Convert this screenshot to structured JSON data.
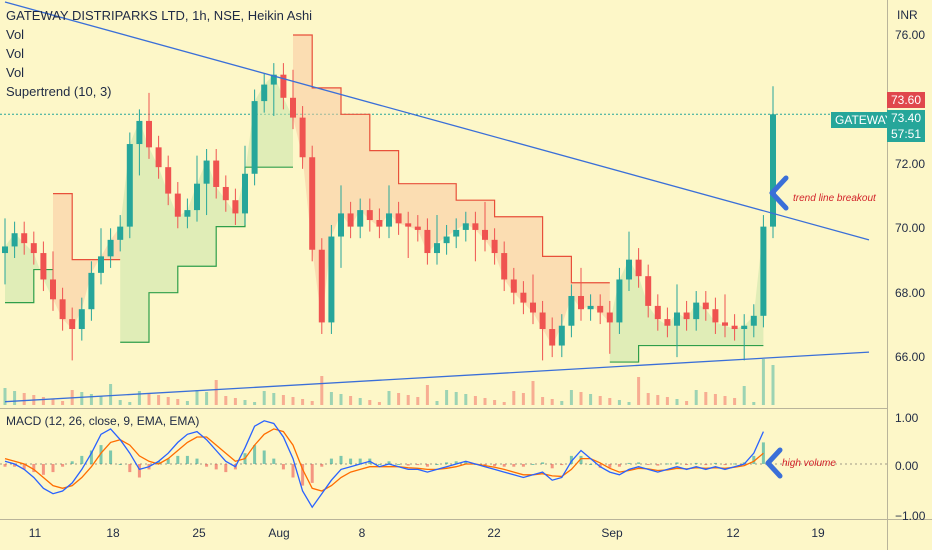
{
  "chart_data": [
    {
      "type": "candlestick",
      "title": "GATEWAY DISTRIPARKS LTD, 1h, NSE, Heikin Ashi",
      "indicators": [
        "Vol",
        "Vol",
        "Vol",
        "Supertrend (10, 3)"
      ],
      "currency": "INR",
      "ylim": [
        64.6,
        76.8
      ],
      "y_ticks": [
        "76.00",
        "72.00",
        "70.00",
        "68.00",
        "66.00"
      ],
      "x_ticks": [
        "11",
        "18",
        "25",
        "Aug",
        "8",
        "22",
        "Sep",
        "12",
        "19"
      ],
      "price_series": [
        69.4,
        69.8,
        69.5,
        69.2,
        68.4,
        67.8,
        67.2,
        66.9,
        67.5,
        68.6,
        69.1,
        69.6,
        70.0,
        72.5,
        73.2,
        72.4,
        71.8,
        71.0,
        70.3,
        70.5,
        71.3,
        72.0,
        71.2,
        70.8,
        70.4,
        71.6,
        73.8,
        74.3,
        74.6,
        73.9,
        73.3,
        72.1,
        69.3,
        67.1,
        69.7,
        70.4,
        70.0,
        70.5,
        70.2,
        70.0,
        70.4,
        70.1,
        70.0,
        69.9,
        69.2,
        69.5,
        69.7,
        69.9,
        70.1,
        69.9,
        69.6,
        69.2,
        68.4,
        68.0,
        67.7,
        67.4,
        66.9,
        66.4,
        67.0,
        67.9,
        67.5,
        67.6,
        67.4,
        67.1,
        68.4,
        69.0,
        68.5,
        67.6,
        67.2,
        67.0,
        67.4,
        67.2,
        67.7,
        67.5,
        67.1,
        67.0,
        66.9,
        67.0,
        67.3,
        70.0,
        73.4
      ],
      "supertrend_segments": [
        {
          "state": "up",
          "points": [
            [
              0,
              67.7
            ],
            [
              3,
              67.7
            ],
            [
              3,
              68.7
            ],
            [
              5,
              68.7
            ]
          ]
        },
        {
          "state": "down",
          "points": [
            [
              5,
              71.0
            ],
            [
              7,
              71.0
            ],
            [
              7,
              69.0
            ],
            [
              12,
              69.0
            ]
          ]
        },
        {
          "state": "up",
          "points": [
            [
              12,
              66.5
            ],
            [
              15,
              66.5
            ],
            [
              15,
              68.0
            ],
            [
              18,
              68.0
            ],
            [
              18,
              68.8
            ],
            [
              22,
              68.8
            ],
            [
              22,
              70.0
            ],
            [
              25,
              70.0
            ],
            [
              25,
              71.8
            ],
            [
              30,
              71.8
            ]
          ]
        },
        {
          "state": "down",
          "points": [
            [
              30,
              75.8
            ],
            [
              32,
              75.8
            ],
            [
              32,
              74.2
            ],
            [
              35,
              74.2
            ],
            [
              35,
              73.4
            ],
            [
              38,
              73.4
            ],
            [
              38,
              72.3
            ],
            [
              41,
              72.3
            ],
            [
              41,
              71.3
            ],
            [
              47,
              71.3
            ],
            [
              47,
              70.8
            ],
            [
              51,
              70.8
            ],
            [
              51,
              70.3
            ],
            [
              56,
              70.3
            ],
            [
              56,
              69.1
            ],
            [
              59,
              69.1
            ],
            [
              59,
              68.3
            ],
            [
              63,
              68.3
            ]
          ]
        },
        {
          "state": "up",
          "points": [
            [
              63,
              65.9
            ],
            [
              66,
              65.9
            ],
            [
              66,
              66.4
            ],
            [
              79,
              66.4
            ]
          ]
        }
      ],
      "trend_lines": [
        {
          "name": "upper",
          "points": [
            [
              0,
              76.8
            ],
            [
              90,
              69.6
            ]
          ]
        },
        {
          "name": "lower",
          "points": [
            [
              0,
              64.7
            ],
            [
              90,
              66.2
            ]
          ]
        }
      ],
      "last_price_labels": [
        {
          "label": "73.60",
          "color": "#e0474c"
        },
        {
          "label": "GATEWAY",
          "color": "#26a69a"
        },
        {
          "label": "73.40",
          "color": "#26a69a"
        },
        {
          "label": "57:51",
          "color": "#26a69a"
        }
      ],
      "annotations": [
        "trend line breakout",
        "high volume"
      ]
    },
    {
      "type": "macd",
      "title": "MACD (12, 26, close, 9, EMA, EMA)",
      "ylim": [
        -1.0,
        1.0
      ],
      "y_ticks": [
        "1.00",
        "0.00",
        "−1.00"
      ],
      "macd_series": [
        0.05,
        0.0,
        -0.1,
        -0.25,
        -0.45,
        -0.55,
        -0.5,
        -0.35,
        -0.1,
        0.2,
        0.55,
        0.65,
        0.45,
        0.2,
        -0.1,
        -0.05,
        0.05,
        0.2,
        0.4,
        0.55,
        0.6,
        0.45,
        0.25,
        0.05,
        -0.05,
        0.3,
        0.7,
        0.8,
        0.75,
        0.5,
        0.1,
        -0.5,
        -0.8,
        -0.55,
        -0.3,
        -0.1,
        -0.05,
        0.0,
        0.05,
        -0.05,
        0.0,
        -0.05,
        -0.1,
        -0.1,
        -0.15,
        -0.1,
        -0.05,
        0.0,
        0.05,
        0.0,
        -0.05,
        -0.1,
        -0.15,
        -0.2,
        -0.25,
        -0.2,
        -0.15,
        -0.3,
        -0.25,
        0.05,
        0.25,
        0.1,
        -0.05,
        -0.15,
        -0.2,
        -0.1,
        -0.05,
        -0.1,
        -0.15,
        -0.1,
        -0.05,
        -0.1,
        -0.05,
        -0.1,
        -0.05,
        -0.1,
        -0.05,
        0.0,
        0.2,
        0.6
      ],
      "signal_series": [
        0.1,
        0.05,
        0.0,
        -0.1,
        -0.25,
        -0.4,
        -0.45,
        -0.4,
        -0.25,
        -0.05,
        0.2,
        0.4,
        0.45,
        0.35,
        0.15,
        0.05,
        0.0,
        0.1,
        0.25,
        0.4,
        0.5,
        0.5,
        0.35,
        0.2,
        0.05,
        0.1,
        0.35,
        0.55,
        0.65,
        0.6,
        0.35,
        -0.1,
        -0.45,
        -0.5,
        -0.4,
        -0.25,
        -0.15,
        -0.1,
        -0.05,
        -0.05,
        -0.05,
        -0.05,
        -0.07,
        -0.08,
        -0.1,
        -0.1,
        -0.08,
        -0.05,
        0.0,
        0.0,
        -0.03,
        -0.06,
        -0.1,
        -0.15,
        -0.2,
        -0.2,
        -0.18,
        -0.22,
        -0.23,
        -0.1,
        0.1,
        0.1,
        0.02,
        -0.08,
        -0.15,
        -0.12,
        -0.08,
        -0.09,
        -0.12,
        -0.11,
        -0.08,
        -0.09,
        -0.07,
        -0.08,
        -0.07,
        -0.08,
        -0.06,
        -0.03,
        0.05,
        0.2
      ]
    }
  ],
  "colors": {
    "background": "#fdf7c8",
    "up": "#26a69a",
    "down": "#ef5350",
    "trendline": "#3a6fd8",
    "macd": "#2962ff",
    "signal": "#ff6d00",
    "arrow": "#3a6fd8"
  }
}
